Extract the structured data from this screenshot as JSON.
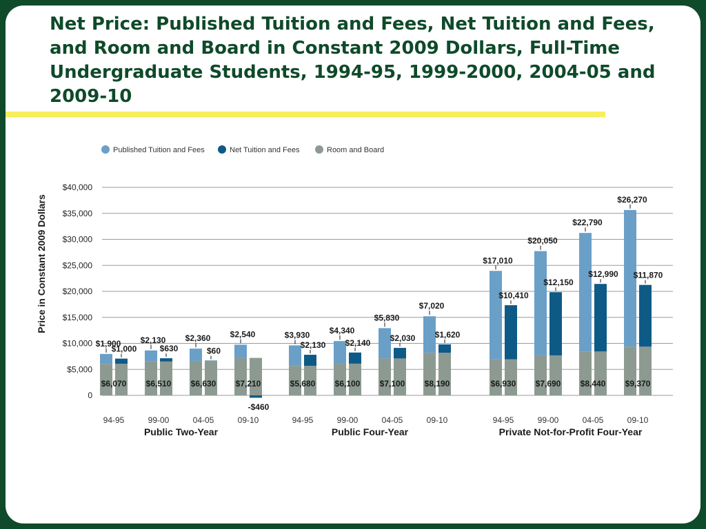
{
  "slide": {
    "title": "Net Price: Published Tuition and Fees, Net Tuition and Fees, and Room and Board in Constant 2009 Dollars, Full-Time Undergraduate Students, 1994-95, 1999-2000, 2004-05 and 2009-10",
    "colors": {
      "frame": "#0f4a2a",
      "accent_bar": "#f6ef5a",
      "title": "#0f4a2a"
    }
  },
  "chart_data": {
    "type": "bar",
    "ylabel": "Price in Constant 2009 Dollars",
    "ylim": [
      -1000,
      40000
    ],
    "yticks": [
      {
        "value": 40000,
        "label": "$40,000"
      },
      {
        "value": 35000,
        "label": "$35,000"
      },
      {
        "value": 30000,
        "label": "$30,000"
      },
      {
        "value": 25000,
        "label": "$25,000"
      },
      {
        "value": 20000,
        "label": "$20,000"
      },
      {
        "value": 15000,
        "label": "$15,000"
      },
      {
        "value": 10000,
        "label": "$10,000"
      },
      {
        "value": 5000,
        "label": "$5,000"
      },
      {
        "value": 0,
        "label": "0"
      }
    ],
    "grid": true,
    "legend_position": "top-left",
    "legend": [
      {
        "name": "Published Tuition and Fees",
        "color": "#6a9fc8"
      },
      {
        "name": "Net Tuition and Fees",
        "color": "#0e5a86"
      },
      {
        "name": "Room and Board",
        "color": "#8d9a92"
      }
    ],
    "groups": [
      {
        "name": "Public Two-Year",
        "items": [
          {
            "year": "94-95",
            "room_board": 6070,
            "published": 1900,
            "net": 1000,
            "rb_label": "$6,070",
            "pub_label": "$1,900",
            "net_label": "$1,000"
          },
          {
            "year": "99-00",
            "room_board": 6510,
            "published": 2130,
            "net": 630,
            "rb_label": "$6,510",
            "pub_label": "$2,130",
            "net_label": "$630"
          },
          {
            "year": "04-05",
            "room_board": 6630,
            "published": 2360,
            "net": 60,
            "rb_label": "$6,630",
            "pub_label": "$2,360",
            "net_label": "$60"
          },
          {
            "year": "09-10",
            "room_board": 7210,
            "published": 2540,
            "net": -460,
            "rb_label": "$7,210",
            "pub_label": "$2,540",
            "net_label": "-$460"
          }
        ]
      },
      {
        "name": "Public Four-Year",
        "items": [
          {
            "year": "94-95",
            "room_board": 5680,
            "published": 3930,
            "net": 2130,
            "rb_label": "$5,680",
            "pub_label": "$3,930",
            "net_label": "$2,130"
          },
          {
            "year": "99-00",
            "room_board": 6100,
            "published": 4340,
            "net": 2140,
            "rb_label": "$6,100",
            "pub_label": "$4,340",
            "net_label": "$2,140"
          },
          {
            "year": "04-05",
            "room_board": 7100,
            "published": 5830,
            "net": 2030,
            "rb_label": "$7,100",
            "pub_label": "$5,830",
            "net_label": "$2,030"
          },
          {
            "year": "09-10",
            "room_board": 8190,
            "published": 7020,
            "net": 1620,
            "rb_label": "$8,190",
            "pub_label": "$7,020",
            "net_label": "$1,620"
          }
        ]
      },
      {
        "name": "Private Not-for-Profit Four-Year",
        "items": [
          {
            "year": "94-95",
            "room_board": 6930,
            "published": 17010,
            "net": 10410,
            "rb_label": "$6,930",
            "pub_label": "$17,010",
            "net_label": "$10,410"
          },
          {
            "year": "99-00",
            "room_board": 7690,
            "published": 20050,
            "net": 12150,
            "rb_label": "$7,690",
            "pub_label": "$20,050",
            "net_label": "$12,150"
          },
          {
            "year": "04-05",
            "room_board": 8440,
            "published": 22790,
            "net": 12990,
            "rb_label": "$8,440",
            "pub_label": "$22,790",
            "net_label": "$12,990"
          },
          {
            "year": "09-10",
            "room_board": 9370,
            "published": 26270,
            "net": 11870,
            "rb_label": "$9,370",
            "pub_label": "$26,270",
            "net_label": "$11,870"
          }
        ]
      }
    ]
  }
}
